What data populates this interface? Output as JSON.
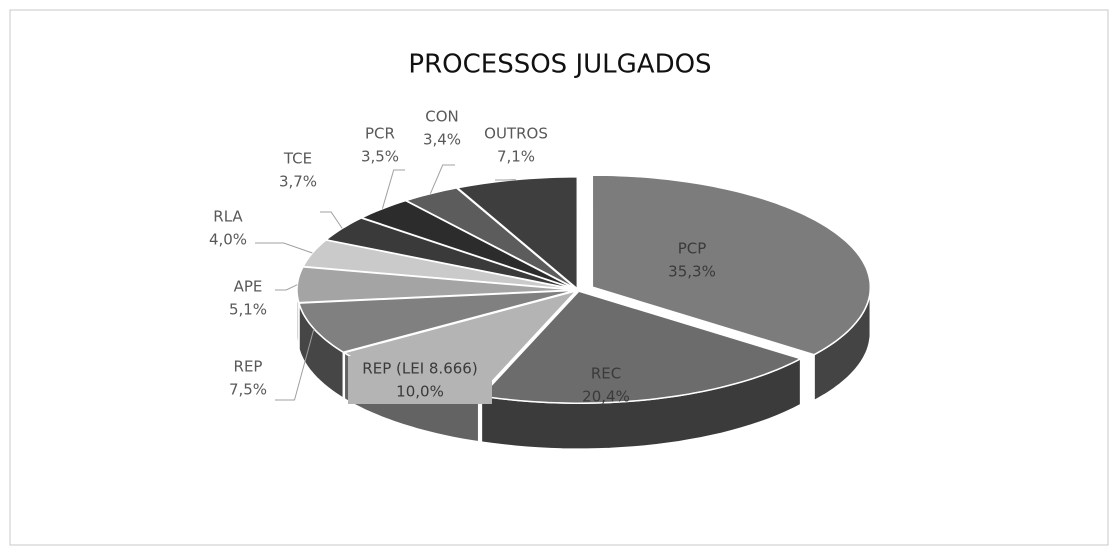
{
  "chart_data": {
    "type": "pie",
    "title": "PROCESSOS JULGADOS",
    "categories": [
      "PCP",
      "REC",
      "REP (LEI 8.666)",
      "REP",
      "APE",
      "RLA",
      "TCE",
      "PCR",
      "CON",
      "OUTROS"
    ],
    "values": [
      35.3,
      20.4,
      10.0,
      7.5,
      5.1,
      4.0,
      3.7,
      3.5,
      3.4,
      7.1
    ],
    "value_labels": [
      "35,3%",
      "20,4%",
      "10,0%",
      "7,5%",
      "5,1%",
      "4,0%",
      "3,7%",
      "3,5%",
      "3,4%",
      "7,1%"
    ],
    "colors": [
      "#7c7c7c",
      "#6c6c6c",
      "#b4b4b4",
      "#808080",
      "#a4a4a4",
      "#cacaca",
      "#3a3a3a",
      "#2c2c2c",
      "#5c5c5c",
      "#3e3e3e"
    ]
  }
}
